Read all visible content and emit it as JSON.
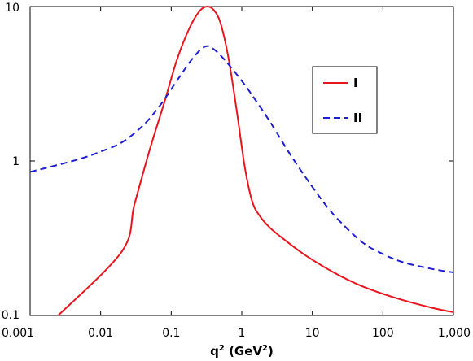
{
  "chart_data": {
    "type": "line",
    "title": "",
    "xlabel": "q",
    "xlabel_sup": "2",
    "xlabel_units": " (GeV",
    "xlabel_units_sup": "2",
    "xlabel_close": ")",
    "ylabel": "",
    "xscale": "log",
    "yscale": "log",
    "xlim": [
      0.001,
      1000
    ],
    "ylim": [
      0.1,
      10
    ],
    "x_ticks": [
      0.001,
      0.01,
      0.1,
      1,
      10,
      100,
      1000
    ],
    "x_tick_labels": [
      "0.001",
      "0.01",
      "0.1",
      "1",
      "10",
      "100",
      "1,000"
    ],
    "y_ticks": [
      0.1,
      1,
      10
    ],
    "y_tick_labels": [
      "0.1",
      "1",
      "10"
    ],
    "grid": false,
    "legend_position": "upper-right",
    "series": [
      {
        "name": "I",
        "color": "#e8141e",
        "dash": "solid",
        "x": [
          0.0025,
          0.02,
          0.03,
          0.05,
          0.08,
          0.12,
          0.18,
          0.25,
          0.32,
          0.4,
          0.5,
          0.65,
          0.85,
          1.1,
          1.4,
          1.8,
          2.5,
          4,
          8,
          20,
          50,
          150,
          500,
          1000
        ],
        "y": [
          0.1,
          0.26,
          0.52,
          1.2,
          2.4,
          4.5,
          7.2,
          9.3,
          10.0,
          9.5,
          7.8,
          4.6,
          2.1,
          0.92,
          0.55,
          0.44,
          0.37,
          0.31,
          0.245,
          0.19,
          0.155,
          0.13,
          0.112,
          0.105
        ]
      },
      {
        "name": "II",
        "color": "#1e1ed2",
        "dash": "dashed",
        "x": [
          0.001,
          0.002,
          0.005,
          0.01,
          0.02,
          0.04,
          0.07,
          0.12,
          0.2,
          0.3,
          0.4,
          0.6,
          1,
          1.5,
          2.5,
          5,
          10,
          20,
          50,
          100,
          200,
          500,
          1000
        ],
        "y": [
          0.85,
          0.92,
          1.03,
          1.15,
          1.32,
          1.7,
          2.3,
          3.3,
          4.6,
          5.5,
          5.3,
          4.4,
          3.3,
          2.55,
          1.8,
          1.08,
          0.68,
          0.45,
          0.3,
          0.25,
          0.22,
          0.2,
          0.19
        ]
      }
    ]
  }
}
